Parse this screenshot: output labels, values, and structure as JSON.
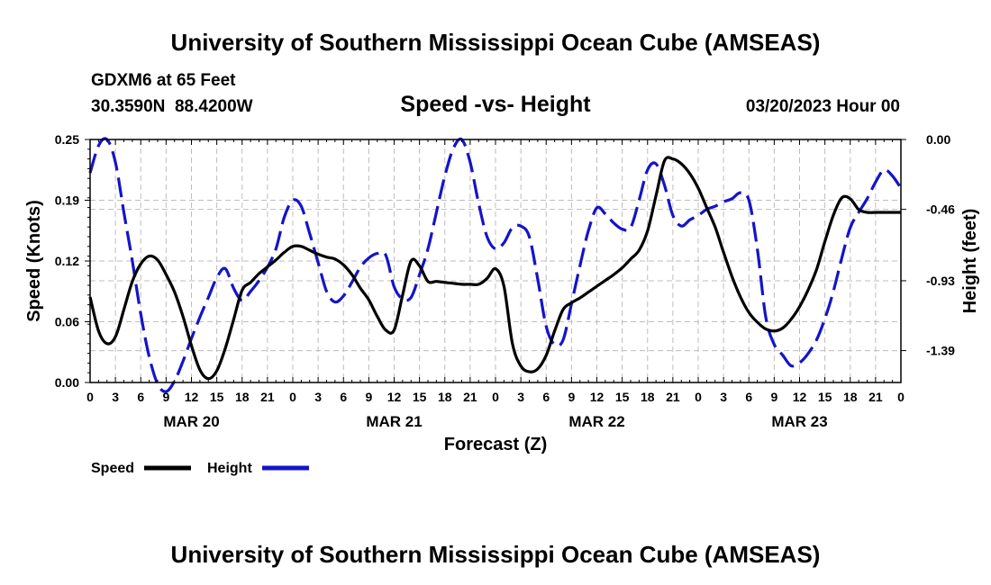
{
  "header": {
    "title": "University of Southern Mississippi Ocean Cube (AMSEAS)",
    "station": "GDXM6 at 65 Feet",
    "coords": "30.3590N  88.4200W",
    "chart_title": "Speed -vs- Height",
    "date": "03/20/2023 Hour 00"
  },
  "footer": {
    "title": "University of Southern Mississippi Ocean Cube (AMSEAS)"
  },
  "legend": {
    "speed_label": "Speed",
    "height_label": "Height"
  },
  "colors": {
    "speed": "#000000",
    "height": "#1414c8",
    "grid": "#bdbdbd"
  },
  "chart_data": {
    "type": "line",
    "title": "Speed -vs- Height",
    "xlabel": "Forecast (Z)",
    "ylabel": "Speed (Knots)",
    "y2label": "Height (feet)",
    "xlim": [
      0,
      96
    ],
    "ylim": [
      0,
      0.25
    ],
    "y2lim": [
      -1.6,
      0.0
    ],
    "x_tick_labels": [
      "0",
      "3",
      "6",
      "9",
      "12",
      "15",
      "18",
      "21",
      "0",
      "3",
      "6",
      "9",
      "12",
      "15",
      "18",
      "21",
      "0",
      "3",
      "6",
      "9",
      "12",
      "15",
      "18",
      "21",
      "0",
      "3",
      "6",
      "9",
      "12",
      "15",
      "18",
      "21",
      "0"
    ],
    "y_tick_labels": [
      "0.00",
      "0.06",
      "0.12",
      "0.19",
      "0.25"
    ],
    "y_tick_values": [
      0,
      0.0625,
      0.125,
      0.1875,
      0.25
    ],
    "y2_tick_labels": [
      "0.00",
      "-0.46",
      "-0.93",
      "-1.39"
    ],
    "y2_tick_values": [
      0.0,
      -0.46,
      -0.93,
      -1.39
    ],
    "day_labels": [
      {
        "label": "MAR 20",
        "hour": 12
      },
      {
        "label": "MAR 21",
        "hour": 36
      },
      {
        "label": "MAR 22",
        "hour": 60
      },
      {
        "label": "MAR 23",
        "hour": 84
      }
    ],
    "legend_position": "bottom-left",
    "series": [
      {
        "name": "Speed",
        "axis": "left",
        "style": "solid",
        "x": [
          0,
          1,
          2,
          3,
          4,
          5,
          6,
          7,
          8,
          9,
          10,
          11,
          12,
          13,
          14,
          15,
          16,
          17,
          18,
          19,
          20,
          21,
          22,
          23,
          24,
          25,
          26,
          27,
          28,
          29,
          30,
          31,
          32,
          33,
          34,
          35,
          36,
          37,
          38,
          39,
          40,
          41,
          42,
          43,
          44,
          45,
          46,
          47,
          48,
          49,
          50,
          51,
          52,
          53,
          54,
          55,
          56,
          57,
          58,
          59,
          60,
          61,
          62,
          63,
          64,
          65,
          66,
          67,
          68,
          69,
          70,
          71,
          72,
          73,
          74,
          75,
          76,
          77,
          78,
          79,
          80,
          81,
          82,
          83,
          84,
          85,
          86,
          87,
          88,
          89,
          90,
          91,
          92,
          93,
          94,
          95,
          96
        ],
        "values": [
          0.088,
          0.053,
          0.04,
          0.047,
          0.075,
          0.104,
          0.122,
          0.13,
          0.126,
          0.111,
          0.093,
          0.068,
          0.038,
          0.013,
          0.004,
          0.012,
          0.035,
          0.065,
          0.095,
          0.103,
          0.112,
          0.119,
          0.126,
          0.134,
          0.14,
          0.14,
          0.136,
          0.132,
          0.129,
          0.127,
          0.121,
          0.111,
          0.097,
          0.085,
          0.068,
          0.054,
          0.054,
          0.09,
          0.125,
          0.12,
          0.104,
          0.104,
          0.103,
          0.102,
          0.101,
          0.101,
          0.101,
          0.107,
          0.117,
          0.099,
          0.04,
          0.017,
          0.011,
          0.014,
          0.028,
          0.053,
          0.075,
          0.082,
          0.087,
          0.093,
          0.099,
          0.105,
          0.111,
          0.118,
          0.127,
          0.136,
          0.156,
          0.192,
          0.228,
          0.23,
          0.225,
          0.215,
          0.2,
          0.18,
          0.16,
          0.134,
          0.109,
          0.088,
          0.072,
          0.062,
          0.055,
          0.053,
          0.056,
          0.065,
          0.078,
          0.095,
          0.116,
          0.145,
          0.172,
          0.19,
          0.189,
          0.178,
          0.175,
          0.175,
          0.175,
          0.175,
          0.175
        ]
      },
      {
        "name": "Height",
        "axis": "right",
        "style": "dashed",
        "x": [
          0,
          1,
          2,
          3,
          4,
          5,
          6,
          7,
          8,
          9,
          10,
          11,
          12,
          13,
          14,
          15,
          16,
          17,
          18,
          19,
          20,
          21,
          22,
          23,
          24,
          25,
          26,
          27,
          28,
          29,
          30,
          31,
          32,
          33,
          34,
          35,
          36,
          37,
          38,
          39,
          40,
          41,
          42,
          43,
          44,
          45,
          46,
          47,
          48,
          49,
          50,
          51,
          52,
          53,
          54,
          55,
          56,
          57,
          58,
          59,
          60,
          61,
          62,
          63,
          64,
          65,
          66,
          67,
          68,
          69,
          70,
          71,
          72,
          73,
          74,
          75,
          76,
          77,
          78,
          79,
          80,
          81,
          82,
          83,
          84,
          85,
          86,
          87,
          88,
          89,
          90,
          91,
          92,
          93,
          94,
          95,
          96
        ],
        "values": [
          -0.22,
          -0.04,
          0.0,
          -0.15,
          -0.48,
          -0.8,
          -1.15,
          -1.43,
          -1.61,
          -1.66,
          -1.59,
          -1.46,
          -1.31,
          -1.17,
          -1.04,
          -0.91,
          -0.85,
          -0.98,
          -1.06,
          -1.0,
          -0.93,
          -0.84,
          -0.72,
          -0.51,
          -0.4,
          -0.44,
          -0.62,
          -0.81,
          -1.0,
          -1.07,
          -1.03,
          -0.94,
          -0.84,
          -0.78,
          -0.75,
          -0.76,
          -0.97,
          -1.05,
          -1.04,
          -0.89,
          -0.72,
          -0.48,
          -0.24,
          -0.06,
          -0.0,
          -0.15,
          -0.42,
          -0.64,
          -0.72,
          -0.68,
          -0.58,
          -0.57,
          -0.64,
          -0.92,
          -1.23,
          -1.35,
          -1.32,
          -1.08,
          -0.83,
          -0.6,
          -0.45,
          -0.49,
          -0.55,
          -0.59,
          -0.58,
          -0.4,
          -0.2,
          -0.16,
          -0.3,
          -0.5,
          -0.57,
          -0.53,
          -0.5,
          -0.46,
          -0.44,
          -0.41,
          -0.39,
          -0.35,
          -0.4,
          -0.72,
          -1.17,
          -1.35,
          -1.42,
          -1.49,
          -1.47,
          -1.41,
          -1.32,
          -1.18,
          -1.0,
          -0.78,
          -0.58,
          -0.48,
          -0.39,
          -0.28,
          -0.2,
          -0.24,
          -0.32
        ]
      }
    ]
  }
}
